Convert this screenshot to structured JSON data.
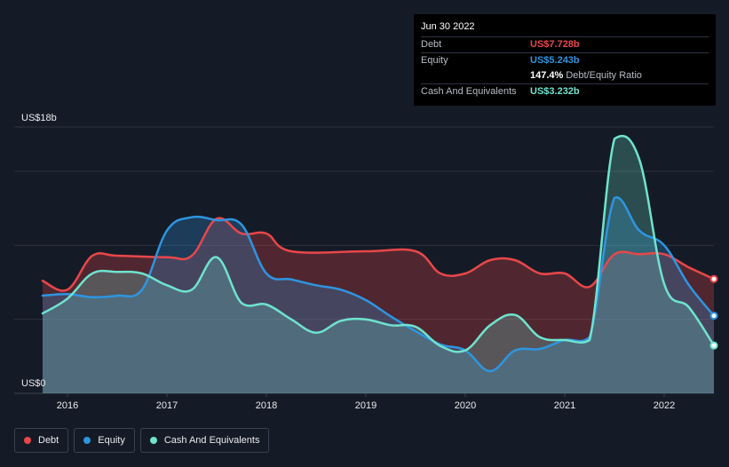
{
  "tooltip": {
    "date": "Jun 30 2022",
    "rows": [
      {
        "label": "Debt",
        "value": "US$7.728b",
        "color": "#e8474a"
      },
      {
        "label": "Equity",
        "value": "US$5.243b",
        "color": "#2e95e0"
      },
      {
        "label": "",
        "value": "147.4%",
        "suffix": "Debt/Equity Ratio",
        "color": "#ffffff"
      },
      {
        "label": "Cash And Equivalents",
        "value": "US$3.232b",
        "color": "#6fe3cf"
      }
    ]
  },
  "legend": [
    {
      "label": "Debt",
      "color": "#e8474a"
    },
    {
      "label": "Equity",
      "color": "#2e95e0"
    },
    {
      "label": "Cash And Equivalents",
      "color": "#6fe3cf"
    }
  ],
  "chart_data": {
    "type": "area",
    "y_top_label": "US$18b",
    "y_bottom_label": "US$0",
    "ylim": [
      0,
      18
    ],
    "xlim": [
      2015.75,
      2022.5
    ],
    "x_ticks": [
      "2016",
      "2017",
      "2018",
      "2019",
      "2020",
      "2021",
      "2022"
    ],
    "grid": true,
    "legend_position": "bottom-left",
    "series": [
      {
        "name": "Debt",
        "color": "#e8474a",
        "x": [
          2015.75,
          2016.0,
          2016.25,
          2016.5,
          2017.0,
          2017.25,
          2017.5,
          2017.75,
          2018.0,
          2018.25,
          2019.0,
          2019.5,
          2019.75,
          2020.0,
          2020.25,
          2020.5,
          2020.75,
          2021.0,
          2021.25,
          2021.5,
          2021.75,
          2022.0,
          2022.25,
          2022.5
        ],
        "values": [
          7.6,
          7.0,
          9.3,
          9.3,
          9.2,
          9.3,
          11.8,
          10.8,
          10.8,
          9.6,
          9.6,
          9.6,
          8.1,
          8.1,
          9.0,
          9.0,
          8.1,
          8.1,
          7.2,
          9.4,
          9.4,
          9.4,
          8.5,
          7.728
        ]
      },
      {
        "name": "Equity",
        "color": "#2e95e0",
        "x": [
          2015.75,
          2016.0,
          2016.25,
          2016.5,
          2016.75,
          2017.0,
          2017.25,
          2017.5,
          2017.75,
          2018.0,
          2018.25,
          2018.5,
          2018.75,
          2019.0,
          2019.25,
          2019.5,
          2019.75,
          2020.0,
          2020.25,
          2020.5,
          2020.75,
          2021.0,
          2021.25,
          2021.5,
          2021.75,
          2022.0,
          2022.25,
          2022.5
        ],
        "values": [
          6.6,
          6.7,
          6.5,
          6.6,
          7.0,
          11.0,
          11.9,
          11.7,
          11.4,
          8.1,
          7.7,
          7.3,
          7.0,
          6.3,
          5.2,
          4.2,
          3.3,
          2.9,
          1.5,
          2.9,
          3.0,
          3.6,
          3.8,
          13.2,
          11.0,
          10.0,
          7.3,
          5.243
        ]
      },
      {
        "name": "Cash And Equivalents",
        "color": "#6fe3cf",
        "x": [
          2015.75,
          2016.0,
          2016.25,
          2016.5,
          2016.75,
          2017.0,
          2017.25,
          2017.5,
          2017.75,
          2018.0,
          2018.25,
          2018.5,
          2018.75,
          2019.0,
          2019.25,
          2019.5,
          2019.75,
          2020.0,
          2020.25,
          2020.5,
          2020.75,
          2021.0,
          2021.25,
          2021.5,
          2021.75,
          2022.0,
          2022.25,
          2022.5
        ],
        "values": [
          5.4,
          6.4,
          8.1,
          8.2,
          8.1,
          7.3,
          7.0,
          9.2,
          6.1,
          6.0,
          5.0,
          4.1,
          4.9,
          5.0,
          4.6,
          4.5,
          3.2,
          2.9,
          4.6,
          5.3,
          3.8,
          3.6,
          3.6,
          17.2,
          15.8,
          7.4,
          5.8,
          3.232
        ]
      }
    ]
  }
}
